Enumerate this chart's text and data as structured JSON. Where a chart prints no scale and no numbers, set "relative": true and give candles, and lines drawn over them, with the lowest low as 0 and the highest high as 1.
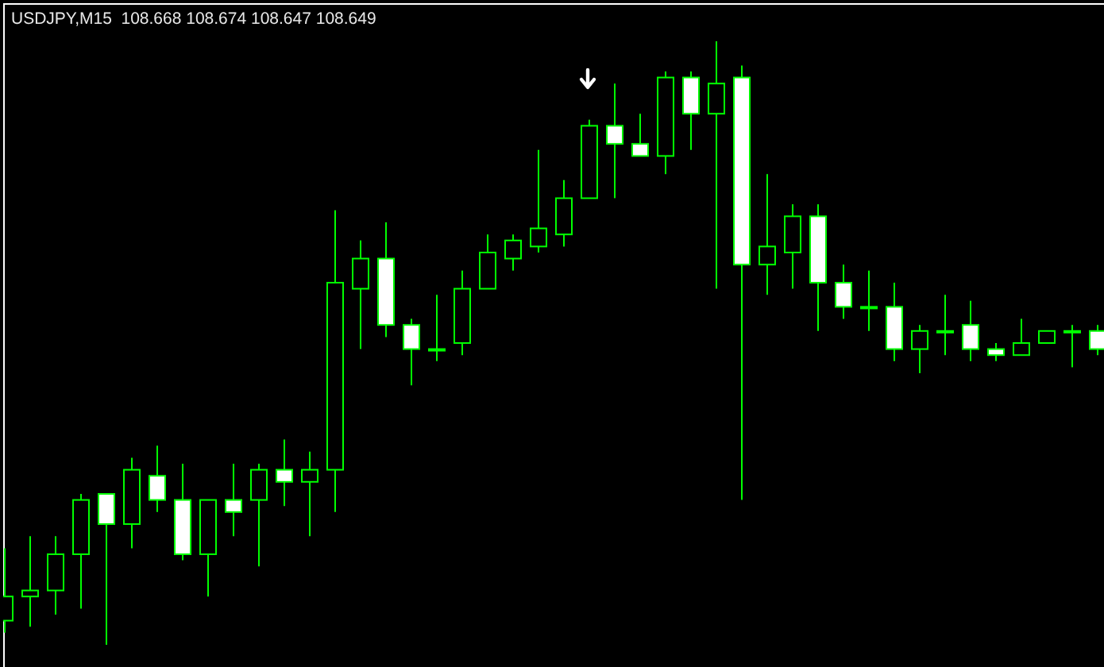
{
  "chart_data": {
    "type": "candlestick",
    "title": "USDJPY,M15  108.668 108.674 108.647 108.649",
    "relative": true,
    "color": "#00ff00",
    "categories": [
      null,
      null,
      null,
      null,
      null,
      null,
      null,
      null,
      null,
      null,
      null,
      null,
      null,
      null,
      null,
      null,
      null,
      null,
      null,
      null,
      null,
      null,
      null,
      null,
      null,
      null,
      null,
      null,
      null,
      null,
      null,
      null,
      null,
      null,
      null,
      null,
      null,
      null,
      null,
      null,
      null,
      null,
      null,
      null
    ],
    "ohlc": [
      [
        0.04,
        0.16,
        0.02,
        0.08
      ],
      [
        0.08,
        0.18,
        0.03,
        0.09
      ],
      [
        0.09,
        0.18,
        0.05,
        0.15
      ],
      [
        0.15,
        0.25,
        0.06,
        0.24
      ],
      [
        0.25,
        0.25,
        0,
        0.2
      ],
      [
        0.2,
        0.31,
        0.16,
        0.29
      ],
      [
        0.28,
        0.33,
        0.22,
        0.24
      ],
      [
        0.24,
        0.3,
        0.14,
        0.15
      ],
      [
        0.15,
        0.24,
        0.08,
        0.24
      ],
      [
        0.24,
        0.3,
        0.18,
        0.22
      ],
      [
        0.24,
        0.3,
        0.13,
        0.29
      ],
      [
        0.29,
        0.34,
        0.23,
        0.27
      ],
      [
        0.27,
        0.32,
        0.18,
        0.29
      ],
      [
        0.29,
        0.72,
        0.22,
        0.6
      ],
      [
        0.59,
        0.67,
        0.49,
        0.64
      ],
      [
        0.64,
        0.7,
        0.51,
        0.53
      ],
      [
        0.53,
        0.54,
        0.43,
        0.49
      ],
      [
        0.49,
        0.58,
        0.47,
        0.49
      ],
      [
        0.5,
        0.62,
        0.48,
        0.59
      ],
      [
        0.59,
        0.68,
        0.59,
        0.65
      ],
      [
        0.64,
        0.68,
        0.62,
        0.67
      ],
      [
        0.66,
        0.82,
        0.65,
        0.69
      ],
      [
        0.68,
        0.77,
        0.66,
        0.74
      ],
      [
        0.74,
        0.87,
        0.74,
        0.86
      ],
      [
        0.86,
        0.93,
        0.74,
        0.83
      ],
      [
        0.83,
        0.88,
        0.81,
        0.81
      ],
      [
        0.81,
        0.95,
        0.78,
        0.94
      ],
      [
        0.94,
        0.95,
        0.82,
        0.88
      ],
      [
        0.88,
        1,
        0.59,
        0.93
      ],
      [
        0.94,
        0.96,
        0.24,
        0.63
      ],
      [
        0.63,
        0.78,
        0.58,
        0.66
      ],
      [
        0.65,
        0.73,
        0.59,
        0.71
      ],
      [
        0.71,
        0.73,
        0.52,
        0.6
      ],
      [
        0.6,
        0.63,
        0.54,
        0.56
      ],
      [
        0.56,
        0.62,
        0.52,
        0.56
      ],
      [
        0.56,
        0.6,
        0.47,
        0.49
      ],
      [
        0.49,
        0.53,
        0.45,
        0.52
      ],
      [
        0.52,
        0.58,
        0.48,
        0.52
      ],
      [
        0.53,
        0.57,
        0.47,
        0.49
      ],
      [
        0.49,
        0.5,
        0.47,
        0.48
      ],
      [
        0.48,
        0.54,
        0.48,
        0.5
      ],
      [
        0.5,
        0.52,
        0.5,
        0.52
      ],
      [
        0.52,
        0.53,
        0.46,
        0.52
      ],
      [
        0.52,
        0.53,
        0.48,
        0.49
      ]
    ]
  }
}
